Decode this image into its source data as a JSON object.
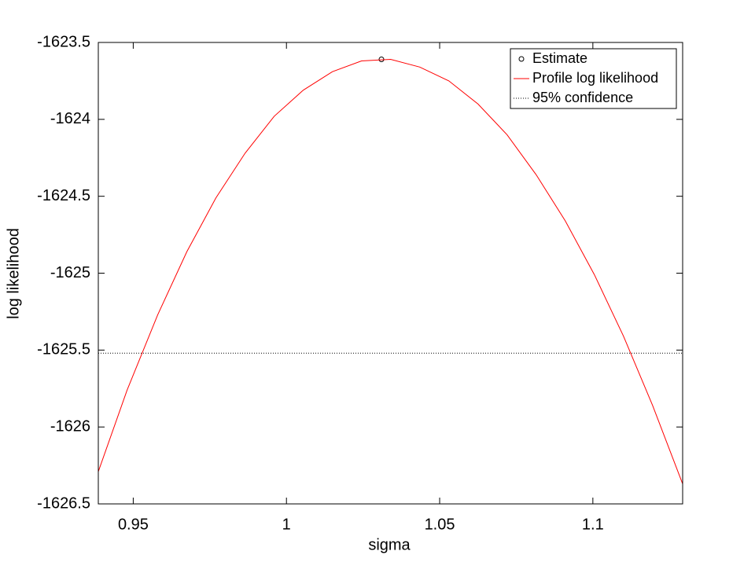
{
  "chart_data": {
    "type": "line",
    "x_label": "sigma",
    "y_label": "log likelihood",
    "xlim": [
      0.9386,
      1.1293
    ],
    "ylim": [
      -1626.5,
      -1623.5
    ],
    "xticks": [
      0.95,
      1,
      1.05,
      1.1
    ],
    "yticks": [
      -1626.5,
      -1626,
      -1625.5,
      -1625,
      -1624.5,
      -1624,
      -1623.5
    ],
    "legend_position": "top-right",
    "series": [
      {
        "name": "Estimate",
        "style": "marker",
        "color": "#000000",
        "x": [
          1.031
        ],
        "values": [
          -1623.61
        ]
      },
      {
        "name": "Profile log likelihood",
        "style": "line",
        "color": "#ff0000",
        "x": [
          0.9386,
          0.948,
          0.958,
          0.9675,
          0.977,
          0.9865,
          0.996,
          1.0055,
          1.015,
          1.0245,
          1.034,
          1.0435,
          1.053,
          1.0625,
          1.072,
          1.0815,
          1.091,
          1.1005,
          1.11,
          1.1195,
          1.1293
        ],
        "values": [
          -1626.29,
          -1625.76,
          -1625.27,
          -1624.86,
          -1624.51,
          -1624.22,
          -1623.98,
          -1623.81,
          -1623.69,
          -1623.62,
          -1623.61,
          -1623.66,
          -1623.75,
          -1623.9,
          -1624.1,
          -1624.36,
          -1624.66,
          -1625.01,
          -1625.41,
          -1625.86,
          -1626.37
        ]
      },
      {
        "name": "95% confidence",
        "style": "hline",
        "color": "#000000",
        "values": [
          -1625.52
        ]
      }
    ]
  }
}
